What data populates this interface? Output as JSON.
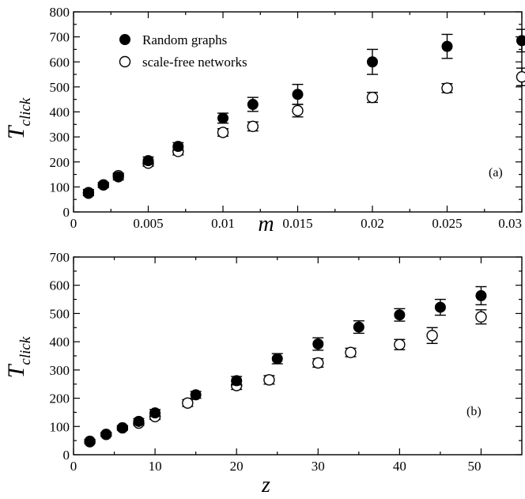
{
  "chart_data": [
    {
      "type": "scatter",
      "panel_label": "(a)",
      "xlabel": "m",
      "ylabel_main": "T",
      "ylabel_sub": "click",
      "xlim": [
        0,
        0.03
      ],
      "ylim": [
        0,
        800
      ],
      "x_ticks": [
        {
          "value": 0,
          "label": "0"
        },
        {
          "value": 0.005,
          "label": "0.005"
        },
        {
          "value": 0.01,
          "label": "0.01"
        },
        {
          "value": 0.015,
          "label": "0.015"
        },
        {
          "value": 0.02,
          "label": "0.02"
        },
        {
          "value": 0.025,
          "label": "0.025"
        },
        {
          "value": 0.03,
          "label": "0.03"
        }
      ],
      "y_ticks": [
        {
          "value": 0,
          "label": "0"
        },
        {
          "value": 100,
          "label": "100"
        },
        {
          "value": 200,
          "label": "200"
        },
        {
          "value": 300,
          "label": "300"
        },
        {
          "value": 400,
          "label": "400"
        },
        {
          "value": 500,
          "label": "500"
        },
        {
          "value": 600,
          "label": "600"
        },
        {
          "value": 700,
          "label": "700"
        },
        {
          "value": 800,
          "label": "800"
        }
      ],
      "legend_position": "top-left",
      "series": [
        {
          "name": "Random graphs",
          "marker": "filled-circle",
          "points": [
            {
              "x": 0.001,
              "y": 78,
              "err": 12
            },
            {
              "x": 0.002,
              "y": 108,
              "err": 10
            },
            {
              "x": 0.003,
              "y": 140,
              "err": 12
            },
            {
              "x": 0.005,
              "y": 205,
              "err": 15
            },
            {
              "x": 0.007,
              "y": 262,
              "err": 15
            },
            {
              "x": 0.01,
              "y": 375,
              "err": 20
            },
            {
              "x": 0.012,
              "y": 430,
              "err": 28
            },
            {
              "x": 0.015,
              "y": 470,
              "err": 40
            },
            {
              "x": 0.02,
              "y": 600,
              "err": 50
            },
            {
              "x": 0.025,
              "y": 662,
              "err": 48
            },
            {
              "x": 0.03,
              "y": 685,
              "err": 45
            }
          ]
        },
        {
          "name": "scale-free networks",
          "marker": "open-circle",
          "points": [
            {
              "x": 0.001,
              "y": 75,
              "err": 10
            },
            {
              "x": 0.002,
              "y": 108,
              "err": 8
            },
            {
              "x": 0.003,
              "y": 145,
              "err": 10
            },
            {
              "x": 0.005,
              "y": 195,
              "err": 12
            },
            {
              "x": 0.007,
              "y": 242,
              "err": 14
            },
            {
              "x": 0.01,
              "y": 318,
              "err": 15
            },
            {
              "x": 0.012,
              "y": 342,
              "err": 18
            },
            {
              "x": 0.015,
              "y": 405,
              "err": 25
            },
            {
              "x": 0.02,
              "y": 458,
              "err": 20
            },
            {
              "x": 0.025,
              "y": 495,
              "err": 18
            },
            {
              "x": 0.03,
              "y": 540,
              "err": 35
            }
          ]
        }
      ]
    },
    {
      "type": "scatter",
      "panel_label": "(b)",
      "xlabel": "z",
      "ylabel_main": "T",
      "ylabel_sub": "click",
      "xlim": [
        0,
        55
      ],
      "ylim": [
        0,
        700
      ],
      "x_ticks": [
        {
          "value": 0,
          "label": "0"
        },
        {
          "value": 10,
          "label": "10"
        },
        {
          "value": 20,
          "label": "20"
        },
        {
          "value": 30,
          "label": "30"
        },
        {
          "value": 40,
          "label": "40"
        },
        {
          "value": 50,
          "label": "50"
        }
      ],
      "y_ticks": [
        {
          "value": 0,
          "label": "0"
        },
        {
          "value": 100,
          "label": "100"
        },
        {
          "value": 200,
          "label": "200"
        },
        {
          "value": 300,
          "label": "300"
        },
        {
          "value": 400,
          "label": "400"
        },
        {
          "value": 500,
          "label": "500"
        },
        {
          "value": 600,
          "label": "600"
        },
        {
          "value": 700,
          "label": "700"
        }
      ],
      "series": [
        {
          "name": "Random graphs",
          "marker": "filled-circle",
          "points": [
            {
              "x": 2,
              "y": 48,
              "err": 6
            },
            {
              "x": 4,
              "y": 72,
              "err": 7
            },
            {
              "x": 6,
              "y": 95,
              "err": 8
            },
            {
              "x": 8,
              "y": 118,
              "err": 10
            },
            {
              "x": 10,
              "y": 148,
              "err": 12
            },
            {
              "x": 15,
              "y": 212,
              "err": 12
            },
            {
              "x": 20,
              "y": 262,
              "err": 15
            },
            {
              "x": 25,
              "y": 340,
              "err": 18
            },
            {
              "x": 30,
              "y": 392,
              "err": 22
            },
            {
              "x": 35,
              "y": 452,
              "err": 22
            },
            {
              "x": 40,
              "y": 495,
              "err": 22
            },
            {
              "x": 45,
              "y": 522,
              "err": 28
            },
            {
              "x": 50,
              "y": 563,
              "err": 32
            }
          ]
        },
        {
          "name": "scale-free networks",
          "marker": "open-circle",
          "points": [
            {
              "x": 2,
              "y": 46,
              "err": 6
            },
            {
              "x": 4,
              "y": 72,
              "err": 6
            },
            {
              "x": 6,
              "y": 95,
              "err": 7
            },
            {
              "x": 8,
              "y": 112,
              "err": 8
            },
            {
              "x": 10,
              "y": 135,
              "err": 10
            },
            {
              "x": 14,
              "y": 183,
              "err": 12
            },
            {
              "x": 20,
              "y": 245,
              "err": 14
            },
            {
              "x": 24,
              "y": 265,
              "err": 15
            },
            {
              "x": 30,
              "y": 325,
              "err": 15
            },
            {
              "x": 34,
              "y": 362,
              "err": 15
            },
            {
              "x": 40,
              "y": 390,
              "err": 18
            },
            {
              "x": 44,
              "y": 422,
              "err": 28
            },
            {
              "x": 50,
              "y": 488,
              "err": 25
            }
          ]
        }
      ]
    }
  ]
}
